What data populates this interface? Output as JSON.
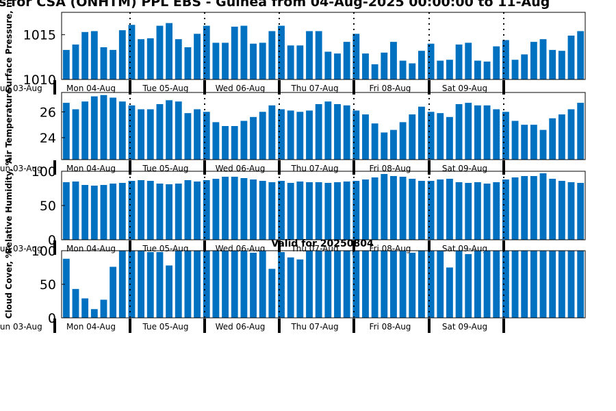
{
  "page": {
    "title": "s for CSA (ONHTM) PPL EBS  - Guinea from 04-Aug-2025 00:00:00 to 11-Aug",
    "subtitle": "Valid for 20250804"
  },
  "style": {
    "bar_color": "#0070c0",
    "divider_color": "#000000",
    "frame_color": "#000000"
  },
  "x_tick_labels": [
    "Sun 03-Aug",
    "Mon 04-Aug",
    "Tue 05-Aug",
    "Wed 06-Aug",
    "Thu 07-Aug",
    "Fri 08-Aug",
    "Sat 09-Aug"
  ],
  "chart_data": [
    {
      "type": "bar",
      "ylabel": "Surface Pressure, m",
      "ylim": [
        1010,
        1017.5
      ],
      "yticks": [
        1010,
        1015
      ],
      "values": [
        1013.3,
        1013.9,
        1015.3,
        1015.4,
        1013.6,
        1013.3,
        1015.5,
        1016.1,
        1014.5,
        1014.6,
        1016.0,
        1016.3,
        1014.5,
        1013.6,
        1015.1,
        1016.0,
        1014.1,
        1014.1,
        1015.9,
        1016.0,
        1014.0,
        1014.1,
        1015.4,
        1016.0,
        1013.8,
        1013.8,
        1015.4,
        1015.4,
        1013.1,
        1012.9,
        1014.2,
        1015.1,
        1012.9,
        1011.7,
        1013.0,
        1014.2,
        1012.1,
        1011.8,
        1013.2,
        1014.0,
        1012.1,
        1012.2,
        1013.9,
        1014.1,
        1012.1,
        1012.0,
        1013.7,
        1014.4,
        1012.2,
        1012.8,
        1014.2,
        1014.5,
        1013.3,
        1013.2,
        1014.9,
        1015.4
      ]
    },
    {
      "type": "bar",
      "ylabel": "Air Temperature",
      "ylim": [
        22.3,
        27.5
      ],
      "yticks": [
        24,
        26
      ],
      "values": [
        26.7,
        26.2,
        26.8,
        27.2,
        27.3,
        27.1,
        26.8,
        26.5,
        26.2,
        26.2,
        26.6,
        26.9,
        26.8,
        25.9,
        26.2,
        26.0,
        25.2,
        24.9,
        24.9,
        25.3,
        25.6,
        26.0,
        26.5,
        26.2,
        26.1,
        26.0,
        26.1,
        26.6,
        26.8,
        26.6,
        26.5,
        26.1,
        25.8,
        25.1,
        24.4,
        24.6,
        25.2,
        25.8,
        26.4,
        26.0,
        25.9,
        25.6,
        26.6,
        26.7,
        26.5,
        26.5,
        26.2,
        26.0,
        25.3,
        25.0,
        25.0,
        24.6,
        25.5,
        25.8,
        26.2,
        26.7
      ]
    },
    {
      "type": "bar",
      "ylabel": "Relative Humidity, %",
      "ylim": [
        0,
        100
      ],
      "yticks": [
        0,
        50,
        100
      ],
      "values": [
        84,
        85,
        80,
        79,
        80,
        82,
        83,
        86,
        87,
        86,
        82,
        81,
        82,
        87,
        85,
        87,
        89,
        92,
        92,
        90,
        88,
        86,
        84,
        86,
        83,
        85,
        84,
        84,
        83,
        84,
        85,
        86,
        88,
        91,
        96,
        93,
        92,
        89,
        86,
        86,
        88,
        89,
        84,
        83,
        84,
        82,
        84,
        88,
        91,
        93,
        93,
        97,
        89,
        86,
        84,
        83
      ]
    },
    {
      "type": "bar",
      "ylabel": "Cloud Cover, %",
      "ylim": [
        0,
        100
      ],
      "yticks": [
        0,
        50,
        100
      ],
      "values": [
        88,
        43,
        29,
        13,
        27,
        76,
        100,
        100,
        100,
        98,
        98,
        78,
        100,
        100,
        100,
        100,
        100,
        100,
        100,
        100,
        97,
        100,
        73,
        98,
        90,
        87,
        100,
        100,
        100,
        100,
        100,
        100,
        100,
        100,
        100,
        100,
        100,
        97,
        100,
        100,
        100,
        75,
        100,
        95,
        100,
        100,
        100,
        100,
        100,
        100,
        100,
        100,
        100,
        100,
        100,
        100
      ]
    }
  ]
}
